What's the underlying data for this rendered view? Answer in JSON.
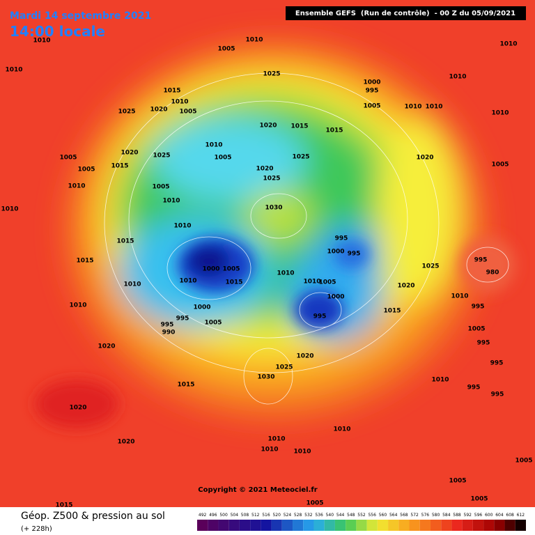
{
  "header": {
    "date": "Mardi 14 septembre 2021",
    "time": "14:00 locale",
    "run": "Ensemble GEFS  (Run de contrôle)  - 00 Z du 05/09/2021"
  },
  "map": {
    "copyright": "Copyright © 2021 Meteociel.fr",
    "pressure_labels": [
      1010,
      1010,
      1005,
      1010,
      1025,
      1000,
      995,
      1005,
      1010,
      1010,
      1010,
      1010,
      1010,
      1015,
      1010,
      1020,
      1005,
      1025,
      1020,
      1015,
      1015,
      1010,
      1005,
      1020,
      1025,
      1005,
      1005,
      1015,
      1010,
      1005,
      1010,
      1020,
      1025,
      1025,
      1020,
      1005,
      1010,
      1030,
      1010,
      1015,
      995,
      1000,
      995,
      1015,
      1000,
      1005,
      1010,
      1015,
      1010,
      1010,
      1005,
      1025,
      995,
      980,
      1020,
      1010,
      1010,
      1000,
      995,
      1005,
      995,
      990,
      995,
      1000,
      1015,
      1010,
      995,
      1005,
      995,
      1020,
      1020,
      1025,
      1030,
      1015,
      1010,
      995,
      995,
      995,
      1020,
      1020,
      1010,
      1010,
      1010,
      1010,
      1005,
      1005,
      1015,
      1005,
      1005
    ]
  },
  "legend": {
    "title": "Géop. Z500 & pression au sol",
    "subtitle": "(+ 228h)",
    "scale": [
      492,
      496,
      500,
      504,
      508,
      512,
      516,
      520,
      524,
      528,
      532,
      536,
      540,
      544,
      548,
      552,
      556,
      560,
      564,
      568,
      572,
      576,
      580,
      584,
      588,
      592,
      596,
      600,
      604,
      608,
      612
    ]
  }
}
